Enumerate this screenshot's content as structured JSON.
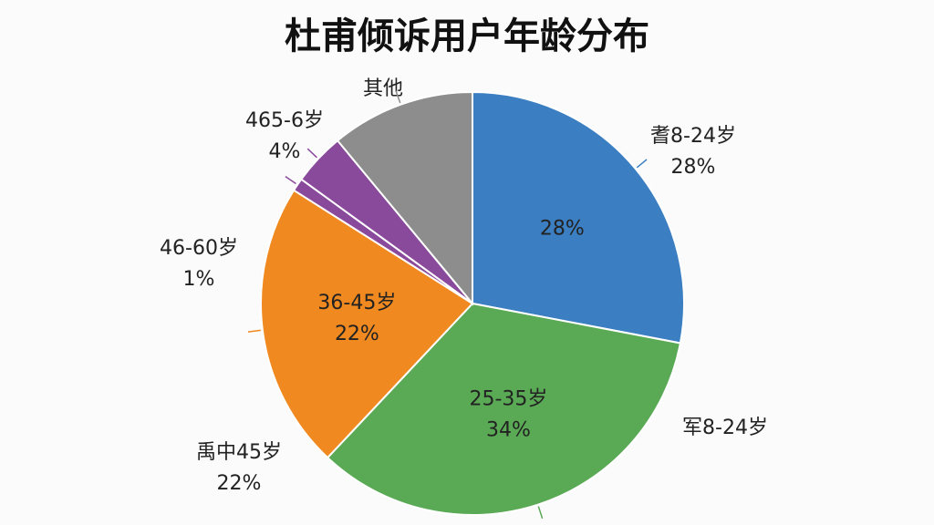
{
  "chart_data": {
    "type": "pie",
    "title": "杜甫倾诉用户年龄分布",
    "categories": [
      "耆8-24岁",
      "军8-24岁",
      "禹中45岁",
      "46-60岁",
      "465-6岁",
      "其他"
    ],
    "values": [
      28,
      34,
      22,
      1,
      4,
      11
    ],
    "value_labels": [
      "28%",
      null,
      "22%",
      "1%",
      "4%",
      null
    ],
    "inner_labels": [
      null,
      "25-35岁",
      "36-45岁",
      null,
      null,
      null
    ],
    "inner_value_labels": [
      "28%",
      "34%",
      "22%",
      null,
      null,
      null
    ],
    "colors": [
      "#3b7fc2",
      "#5aa955",
      "#f0891f",
      "#8a4a9b",
      "#8a4a9b",
      "#8d8d8d"
    ]
  }
}
